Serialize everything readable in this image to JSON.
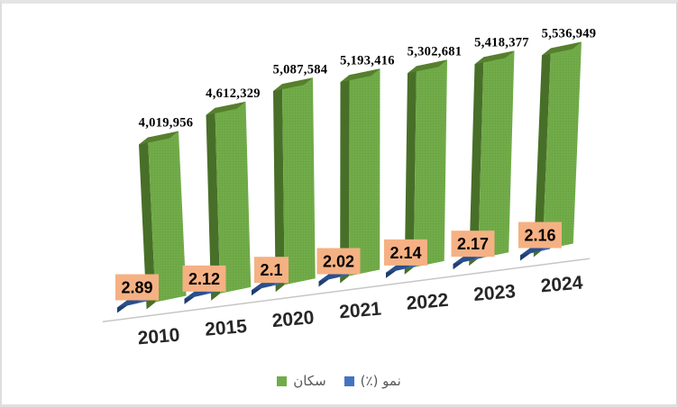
{
  "chart_data": {
    "type": "bar",
    "style": "3d-column-perspective",
    "title": "",
    "categories": [
      "2010",
      "2015",
      "2020",
      "2021",
      "2022",
      "2023",
      "2024"
    ],
    "series": [
      {
        "name": "سكان",
        "color": "#71AB49",
        "values": [
          4019956,
          4612329,
          5087584,
          5193416,
          5302681,
          5418377,
          5536949
        ],
        "data_labels": [
          "4,019,956",
          "4,612,329",
          "5,087,584",
          "5,193,416",
          "5,302,681",
          "5,418,377",
          "5,536,949"
        ]
      },
      {
        "name": "نمو (٪)",
        "color": "#4472C4",
        "values": [
          2.89,
          2.12,
          2.1,
          2.02,
          2.14,
          2.17,
          2.16
        ],
        "data_labels": [
          "2.89",
          "2.12",
          "2.1",
          "2.02",
          "2.14",
          "2.17",
          "2.16"
        ],
        "label_box_fill": "#F5B183"
      }
    ],
    "legend_position": "bottom",
    "grid": false,
    "value_axis_visible": false,
    "category_axis_visible": true
  },
  "legend": {
    "items": [
      {
        "label": "سكان",
        "color": "#71AB49"
      },
      {
        "label": "نمو (٪)",
        "color": "#4472C4"
      }
    ]
  },
  "colors": {
    "green_front": "#71AB49",
    "green_dot": "#65A03D",
    "green_side": "#486F28",
    "green_top": "#567F2E",
    "blue_front": "#3566B0",
    "blue_dot": "#2D5A9E",
    "blue_side": "#1F3E6E",
    "blue_top": "#2A4F8C",
    "label_box": "#F5B183",
    "axis_line": "#C6C6C6",
    "year_text": "#262626",
    "legend_text": "#595959"
  }
}
